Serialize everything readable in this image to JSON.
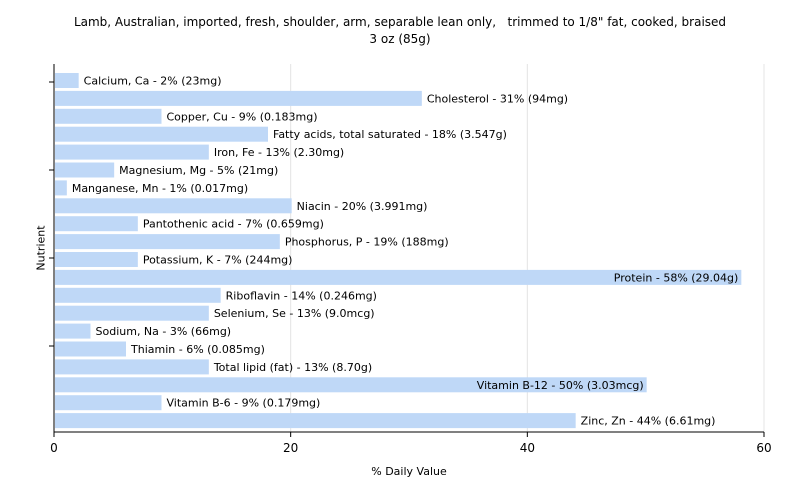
{
  "chart_data": {
    "type": "bar",
    "orientation": "horizontal",
    "title": "Lamb, Australian, imported, fresh, shoulder, arm, separable lean only,   trimmed to 1/8\" fat, cooked, braised",
    "subtitle": "3 oz (85g)",
    "xlabel": "% Daily Value",
    "ylabel": "Nutrient",
    "xlim": [
      0,
      60
    ],
    "xticks": [
      "0",
      "20",
      "40",
      "60"
    ],
    "grid": true,
    "bar_color": "#bfd8f7",
    "categories": [
      "Calcium, Ca",
      "Cholesterol",
      "Copper, Cu",
      "Fatty acids, total saturated",
      "Iron, Fe",
      "Magnesium, Mg",
      "Manganese, Mn",
      "Niacin",
      "Pantothenic acid",
      "Phosphorus, P",
      "Potassium, K",
      "Protein",
      "Riboflavin",
      "Selenium, Se",
      "Sodium, Na",
      "Thiamin",
      "Total lipid (fat)",
      "Vitamin B-12",
      "Vitamin B-6",
      "Zinc, Zn"
    ],
    "values": [
      2,
      31,
      9,
      18,
      13,
      5,
      1,
      20,
      7,
      19,
      7,
      58,
      14,
      13,
      3,
      6,
      13,
      50,
      9,
      44
    ],
    "labels": [
      "Calcium, Ca - 2% (23mg)",
      "Cholesterol - 31% (94mg)",
      "Copper, Cu - 9% (0.183mg)",
      "Fatty acids, total saturated - 18% (3.547g)",
      "Iron, Fe - 13% (2.30mg)",
      "Magnesium, Mg - 5% (21mg)",
      "Manganese, Mn - 1% (0.017mg)",
      "Niacin - 20% (3.991mg)",
      "Pantothenic acid - 7% (0.659mg)",
      "Phosphorus, P - 19% (188mg)",
      "Potassium, K - 7% (244mg)",
      "Protein - 58% (29.04g)",
      "Riboflavin - 14% (0.246mg)",
      "Selenium, Se - 13% (9.0mcg)",
      "Sodium, Na - 3% (66mg)",
      "Thiamin - 6% (0.085mg)",
      "Total lipid (fat) - 13% (8.70g)",
      "Vitamin B-12 - 50% (3.03mcg)",
      "Vitamin B-6 - 9% (0.179mg)",
      "Zinc, Zn - 44% (6.61mg)"
    ]
  }
}
